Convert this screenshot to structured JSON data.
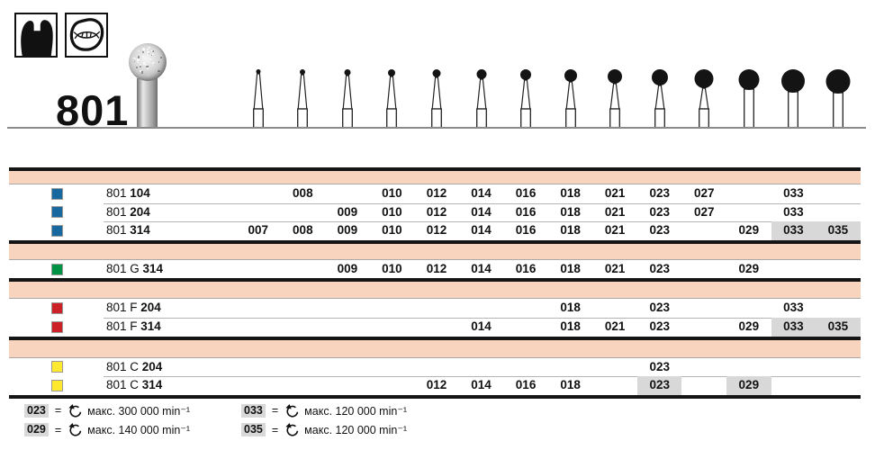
{
  "header": {
    "figure_number": "801",
    "shape_icons": [
      {
        "name": "tooth-crown-silhouette-icon"
      },
      {
        "name": "tooth-occlusal-view-icon"
      }
    ]
  },
  "columns": [
    "007",
    "008",
    "009",
    "010",
    "012",
    "014",
    "016",
    "018",
    "021",
    "023",
    "027",
    "029",
    "033",
    "035"
  ],
  "table": {
    "groups": [
      {
        "grit_color": "#16689e",
        "grit_square_name": "blue-grit-square",
        "rows": [
          {
            "label_regular": "801",
            "label_bold": "104",
            "sizes": [
              "008",
              "010",
              "012",
              "014",
              "016",
              "018",
              "021",
              "023",
              "027",
              "033"
            ],
            "highlighted_sizes": []
          },
          {
            "label_regular": "801",
            "label_bold": "204",
            "sizes": [
              "009",
              "010",
              "012",
              "014",
              "016",
              "018",
              "021",
              "023",
              "027",
              "033"
            ],
            "highlighted_sizes": []
          },
          {
            "label_regular": "801",
            "label_bold": "314",
            "sizes": [
              "007",
              "008",
              "009",
              "010",
              "012",
              "014",
              "016",
              "018",
              "021",
              "023",
              "029",
              "033",
              "035"
            ],
            "highlighted_sizes": [
              "033",
              "035"
            ]
          }
        ]
      },
      {
        "grit_color": "#009245",
        "grit_square_name": "green-grit-square",
        "rows": [
          {
            "label_regular": "801 G",
            "label_bold": "314",
            "sizes": [
              "009",
              "010",
              "012",
              "014",
              "016",
              "018",
              "021",
              "023",
              "029"
            ],
            "highlighted_sizes": []
          }
        ]
      },
      {
        "grit_color": "#cc2127",
        "grit_square_name": "red-grit-square",
        "rows": [
          {
            "label_regular": "801 F",
            "label_bold": "204",
            "sizes": [
              "018",
              "023",
              "033"
            ],
            "highlighted_sizes": []
          },
          {
            "label_regular": "801 F",
            "label_bold": "314",
            "sizes": [
              "014",
              "018",
              "021",
              "023",
              "029",
              "033",
              "035"
            ],
            "highlighted_sizes": [
              "033",
              "035"
            ]
          }
        ]
      },
      {
        "grit_color": "#ffe82e",
        "grit_square_name": "yellow-grit-square",
        "rows": [
          {
            "label_regular": "801 C",
            "label_bold": "204",
            "sizes": [
              "023"
            ],
            "highlighted_sizes": []
          },
          {
            "label_regular": "801 C",
            "label_bold": "314",
            "sizes": [
              "012",
              "014",
              "016",
              "018",
              "023",
              "029"
            ],
            "highlighted_sizes": [
              "023",
              "029"
            ]
          }
        ]
      }
    ]
  },
  "legend": {
    "columns": [
      [
        {
          "code": "023",
          "icon": "rotation-speed-icon",
          "text": "макс. 300 000 min⁻¹"
        },
        {
          "code": "029",
          "icon": "rotation-speed-icon",
          "text": "макс. 140 000 min⁻¹"
        }
      ],
      [
        {
          "code": "033",
          "icon": "rotation-speed-icon",
          "text": "макс. 120 000 min⁻¹"
        },
        {
          "code": "035",
          "icon": "rotation-speed-icon",
          "text": "макс. 120 000 min⁻¹"
        }
      ]
    ]
  },
  "colors": {
    "band": "#f8d3bd",
    "cell_highlight": "#d8d8d8",
    "blue": "#16689e",
    "green": "#009245",
    "red": "#cc2127",
    "yellow": "#ffe82e"
  }
}
